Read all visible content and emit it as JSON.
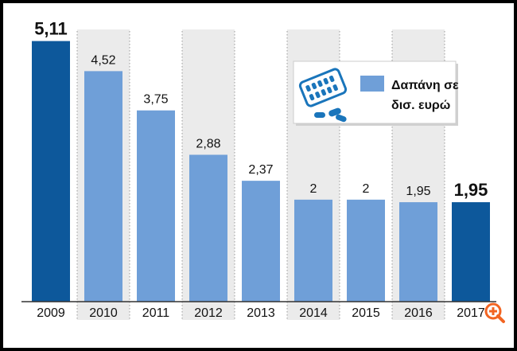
{
  "chart_data": {
    "type": "bar",
    "categories": [
      "2009",
      "2010",
      "2011",
      "2012",
      "2013",
      "2014",
      "2015",
      "2016",
      "2017"
    ],
    "values": [
      5.11,
      4.52,
      3.75,
      2.88,
      2.37,
      2,
      2,
      1.95,
      1.95
    ],
    "data_labels": [
      "5,11",
      "4,52",
      "3,75",
      "2,88",
      "2,37",
      "2",
      "2",
      "1,95",
      "1,95"
    ],
    "highlighted": [
      "2009",
      "2017"
    ],
    "legend": {
      "label_line1": "Δαπάνη σε",
      "label_line2": "δισ. ευρώ",
      "placement": "top-right",
      "icon": "pill-pack-icon"
    },
    "colors": {
      "bar": "#6f9fd8",
      "highlight": "#0d589b",
      "band": "#ebebeb"
    },
    "grid": false,
    "ylim": [
      0,
      5.3
    ]
  },
  "ui": {
    "zoom_icon": "zoom-in-icon",
    "zoom_color": "#f26522"
  }
}
